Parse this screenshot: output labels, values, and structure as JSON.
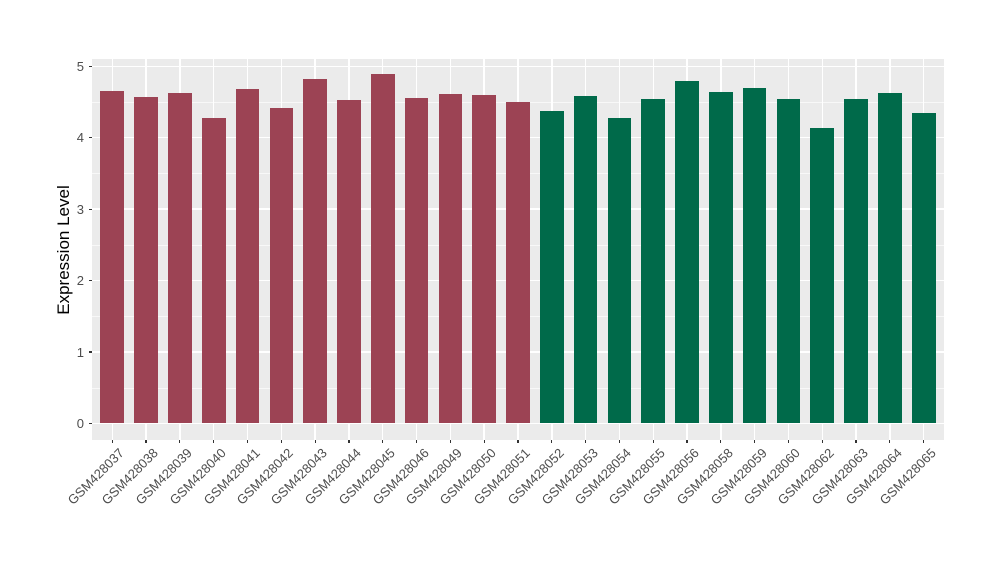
{
  "chart_data": {
    "type": "bar",
    "title": "",
    "xlabel": "",
    "ylabel": "Expression Level",
    "ylim": [
      0,
      5
    ],
    "yticks": [
      0,
      1,
      2,
      3,
      4,
      5
    ],
    "y_minor_ticks": [
      0.5,
      1.5,
      2.5,
      3.5,
      4.5
    ],
    "grid": "on",
    "legend": "none",
    "panel_background": "#ebebeb",
    "gridline_color": "#ffffff",
    "tick_color": "#333333",
    "tick_label_color": "#4d4d4d",
    "group_colors": {
      "red_group": "#9c4354",
      "green_group": "#006a4a"
    },
    "samples": [
      {
        "label": "GSM428037",
        "value": 4.65,
        "group": "red_group"
      },
      {
        "label": "GSM428038",
        "value": 4.57,
        "group": "red_group"
      },
      {
        "label": "GSM428039",
        "value": 4.62,
        "group": "red_group"
      },
      {
        "label": "GSM428040",
        "value": 4.28,
        "group": "red_group"
      },
      {
        "label": "GSM428041",
        "value": 4.68,
        "group": "red_group"
      },
      {
        "label": "GSM428042",
        "value": 4.41,
        "group": "red_group"
      },
      {
        "label": "GSM428043",
        "value": 4.82,
        "group": "red_group"
      },
      {
        "label": "GSM428044",
        "value": 4.53,
        "group": "red_group"
      },
      {
        "label": "GSM428045",
        "value": 4.89,
        "group": "red_group"
      },
      {
        "label": "GSM428046",
        "value": 4.55,
        "group": "red_group"
      },
      {
        "label": "GSM428049",
        "value": 4.61,
        "group": "red_group"
      },
      {
        "label": "GSM428050",
        "value": 4.6,
        "group": "red_group"
      },
      {
        "label": "GSM428051",
        "value": 4.5,
        "group": "red_group"
      },
      {
        "label": "GSM428052",
        "value": 4.37,
        "group": "green_group"
      },
      {
        "label": "GSM428053",
        "value": 4.58,
        "group": "green_group"
      },
      {
        "label": "GSM428054",
        "value": 4.28,
        "group": "green_group"
      },
      {
        "label": "GSM428055",
        "value": 4.54,
        "group": "green_group"
      },
      {
        "label": "GSM428056",
        "value": 4.8,
        "group": "green_group"
      },
      {
        "label": "GSM428058",
        "value": 4.64,
        "group": "green_group"
      },
      {
        "label": "GSM428059",
        "value": 4.69,
        "group": "green_group"
      },
      {
        "label": "GSM428060",
        "value": 4.54,
        "group": "green_group"
      },
      {
        "label": "GSM428062",
        "value": 4.13,
        "group": "green_group"
      },
      {
        "label": "GSM428063",
        "value": 4.54,
        "group": "green_group"
      },
      {
        "label": "GSM428064",
        "value": 4.62,
        "group": "green_group"
      },
      {
        "label": "GSM428065",
        "value": 4.34,
        "group": "green_group"
      }
    ]
  }
}
